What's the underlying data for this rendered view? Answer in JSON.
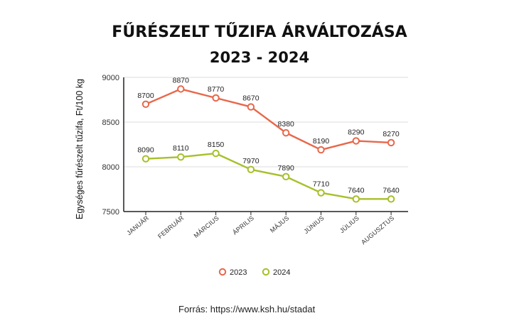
{
  "chart_data": {
    "type": "line",
    "title": "FŰRÉSZELT TŰZIFA ÁRVÁLTOZÁSA",
    "subtitle": "2023 - 2024",
    "ylabel": "Egységes fűrészelt tűzifa, Ft/100 kg",
    "xlabel": "",
    "categories": [
      "JANUÁR",
      "FEBRUÁR",
      "MÁRCIUS",
      "ÁPRILIS",
      "MÁJUS",
      "JÚNIUS",
      "JÚLIUS",
      "AUGUSZTUS"
    ],
    "ylim": [
      7500,
      9000
    ],
    "yticks": [
      7500,
      8000,
      8500,
      9000
    ],
    "grid": true,
    "legend_position": "bottom",
    "series": [
      {
        "name": "2023",
        "color": "#e8674a",
        "values": [
          8700,
          8870,
          8770,
          8670,
          8380,
          8190,
          8290,
          8270
        ]
      },
      {
        "name": "2024",
        "color": "#a8bf2a",
        "values": [
          8090,
          8110,
          8150,
          7970,
          7890,
          7710,
          7640,
          7640
        ]
      }
    ]
  },
  "source_text": "Forrás: https://www.ksh.hu/stadat"
}
